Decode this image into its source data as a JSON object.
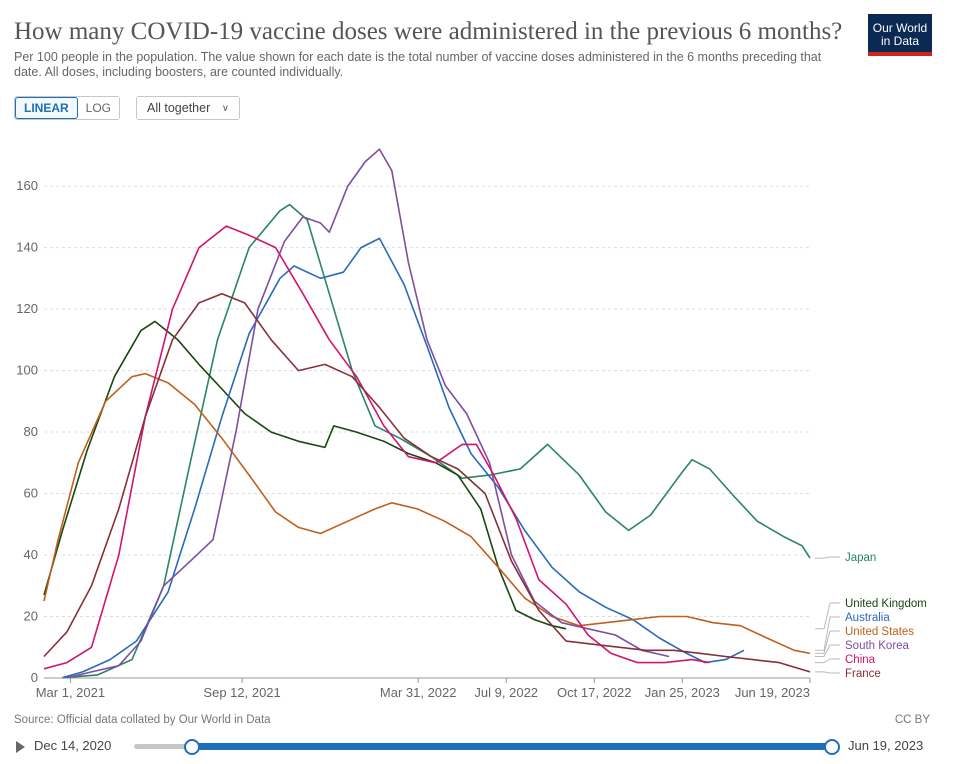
{
  "header": {
    "title": "How many COVID-19 vaccine doses were administered in the previous 6 months?",
    "subtitle": "Per 100 people in the population. The value shown for each date is the total number of vaccine doses administered in the 6 months preceding that date. All doses, including boosters, are counted individually.",
    "logo_line1": "Our World",
    "logo_line2": "in Data"
  },
  "controls": {
    "linear_label": "LINEAR",
    "log_label": "LOG",
    "dropdown_label": "All together",
    "active_scale": "linear"
  },
  "footer": {
    "source": "Source: Official data collated by Our World in Data",
    "license": "CC BY"
  },
  "timeline": {
    "start": "Dec 14, 2020",
    "end": "Jun 19, 2023",
    "start_fraction": 0.083,
    "end_fraction": 1.0
  },
  "chart_data": {
    "type": "line",
    "title": "How many COVID-19 vaccine doses were administered in the previous 6 months?",
    "x_start": "2021-01-30",
    "x_end": "2023-06-19",
    "x_ticks": [
      {
        "date": "2021-03-01",
        "label": "Mar 1, 2021"
      },
      {
        "date": "2021-09-12",
        "label": "Sep 12, 2021"
      },
      {
        "date": "2022-03-31",
        "label": "Mar 31, 2022"
      },
      {
        "date": "2022-07-09",
        "label": "Jul 9, 2022"
      },
      {
        "date": "2022-10-17",
        "label": "Oct 17, 2022"
      },
      {
        "date": "2023-01-25",
        "label": "Jan 25, 2023"
      },
      {
        "date": "2023-06-19",
        "label": "Jun 19, 2023"
      }
    ],
    "y_ticks": [
      0,
      20,
      40,
      60,
      80,
      100,
      120,
      140,
      160
    ],
    "ylim": [
      0,
      175
    ],
    "grid": "horizontal",
    "series": [
      {
        "name": "Japan",
        "color": "#2a8566",
        "points": [
          [
            "2021-02-20",
            0.1
          ],
          [
            "2021-04-01",
            1
          ],
          [
            "2021-05-10",
            6
          ],
          [
            "2021-06-15",
            30
          ],
          [
            "2021-07-15",
            70
          ],
          [
            "2021-08-15",
            110
          ],
          [
            "2021-09-20",
            140
          ],
          [
            "2021-10-25",
            152
          ],
          [
            "2021-11-05",
            154
          ],
          [
            "2021-11-25",
            149
          ],
          [
            "2021-12-20",
            125
          ],
          [
            "2022-01-15",
            100
          ],
          [
            "2022-02-10",
            82
          ],
          [
            "2022-03-10",
            78
          ],
          [
            "2022-04-15",
            72
          ],
          [
            "2022-05-20",
            65
          ],
          [
            "2022-06-20",
            66
          ],
          [
            "2022-07-25",
            68
          ],
          [
            "2022-08-25",
            76
          ],
          [
            "2022-09-30",
            66
          ],
          [
            "2022-10-30",
            54
          ],
          [
            "2022-11-25",
            48
          ],
          [
            "2022-12-20",
            53
          ],
          [
            "2023-01-25",
            67
          ],
          [
            "2023-02-05",
            71
          ],
          [
            "2023-02-25",
            68
          ],
          [
            "2023-03-25",
            59
          ],
          [
            "2023-04-20",
            51
          ],
          [
            "2023-05-20",
            46
          ],
          [
            "2023-06-10",
            43
          ],
          [
            "2023-06-19",
            39
          ]
        ]
      },
      {
        "name": "United Kingdom",
        "color": "#18470f",
        "points": [
          [
            "2021-01-30",
            27
          ],
          [
            "2021-02-20",
            48
          ],
          [
            "2021-03-20",
            74
          ],
          [
            "2021-04-20",
            98
          ],
          [
            "2021-05-20",
            113
          ],
          [
            "2021-06-05",
            116
          ],
          [
            "2021-07-01",
            110
          ],
          [
            "2021-07-25",
            102
          ],
          [
            "2021-08-20",
            94
          ],
          [
            "2021-09-15",
            86
          ],
          [
            "2021-10-15",
            80
          ],
          [
            "2021-11-15",
            77
          ],
          [
            "2021-12-15",
            75
          ],
          [
            "2021-12-25",
            82
          ],
          [
            "2022-01-20",
            80
          ],
          [
            "2022-02-20",
            77
          ],
          [
            "2022-03-20",
            73
          ],
          [
            "2022-04-20",
            70
          ],
          [
            "2022-05-15",
            66
          ],
          [
            "2022-06-10",
            55
          ],
          [
            "2022-06-30",
            36
          ],
          [
            "2022-07-20",
            22
          ],
          [
            "2022-08-10",
            19
          ],
          [
            "2022-08-30",
            17
          ],
          [
            "2022-09-15",
            16
          ]
        ]
      },
      {
        "name": "Australia",
        "color": "#286bbb",
        "points": [
          [
            "2021-02-20",
            0.1
          ],
          [
            "2021-03-15",
            2
          ],
          [
            "2021-04-15",
            6
          ],
          [
            "2021-05-15",
            12
          ],
          [
            "2021-06-20",
            28
          ],
          [
            "2021-07-20",
            55
          ],
          [
            "2021-08-20",
            85
          ],
          [
            "2021-09-20",
            112
          ],
          [
            "2021-10-25",
            130
          ],
          [
            "2021-11-10",
            134
          ],
          [
            "2021-12-10",
            130
          ],
          [
            "2022-01-05",
            132
          ],
          [
            "2022-01-25",
            140
          ],
          [
            "2022-02-15",
            143
          ],
          [
            "2022-03-15",
            128
          ],
          [
            "2022-04-10",
            108
          ],
          [
            "2022-05-05",
            88
          ],
          [
            "2022-05-30",
            73
          ],
          [
            "2022-06-30",
            62
          ],
          [
            "2022-07-30",
            48
          ],
          [
            "2022-08-30",
            36
          ],
          [
            "2022-09-30",
            28
          ],
          [
            "2022-10-30",
            23
          ],
          [
            "2022-11-30",
            19
          ],
          [
            "2022-12-30",
            13
          ],
          [
            "2023-01-30",
            8
          ],
          [
            "2023-02-20",
            5
          ],
          [
            "2023-03-15",
            6
          ],
          [
            "2023-04-05",
            9
          ]
        ]
      },
      {
        "name": "United States",
        "color": "#c15f1c",
        "points": [
          [
            "2021-01-30",
            25
          ],
          [
            "2021-02-15",
            45
          ],
          [
            "2021-03-10",
            70
          ],
          [
            "2021-04-10",
            90
          ],
          [
            "2021-05-10",
            98
          ],
          [
            "2021-05-25",
            99
          ],
          [
            "2021-06-20",
            96
          ],
          [
            "2021-07-20",
            89
          ],
          [
            "2021-08-20",
            78
          ],
          [
            "2021-09-20",
            66
          ],
          [
            "2021-10-20",
            54
          ],
          [
            "2021-11-15",
            49
          ],
          [
            "2021-12-10",
            47
          ],
          [
            "2022-01-10",
            51
          ],
          [
            "2022-02-10",
            55
          ],
          [
            "2022-03-01",
            57
          ],
          [
            "2022-03-30",
            55
          ],
          [
            "2022-04-30",
            51
          ],
          [
            "2022-05-30",
            46
          ],
          [
            "2022-06-30",
            36
          ],
          [
            "2022-07-30",
            26
          ],
          [
            "2022-08-30",
            20
          ],
          [
            "2022-09-30",
            17
          ],
          [
            "2022-10-30",
            18
          ],
          [
            "2022-11-30",
            19
          ],
          [
            "2022-12-30",
            20
          ],
          [
            "2023-01-30",
            20
          ],
          [
            "2023-03-01",
            18
          ],
          [
            "2023-04-01",
            17
          ],
          [
            "2023-05-01",
            13
          ],
          [
            "2023-06-01",
            9
          ],
          [
            "2023-06-19",
            8
          ]
        ]
      },
      {
        "name": "South Korea",
        "color": "#7e4ea0",
        "points": [
          [
            "2021-02-26",
            0.1
          ],
          [
            "2021-03-25",
            2
          ],
          [
            "2021-04-25",
            4
          ],
          [
            "2021-05-20",
            12
          ],
          [
            "2021-06-15",
            30
          ],
          [
            "2021-07-15",
            38
          ],
          [
            "2021-08-10",
            45
          ],
          [
            "2021-09-05",
            80
          ],
          [
            "2021-09-30",
            120
          ],
          [
            "2021-10-30",
            142
          ],
          [
            "2021-11-20",
            150
          ],
          [
            "2021-12-10",
            148
          ],
          [
            "2021-12-20",
            145
          ],
          [
            "2022-01-10",
            160
          ],
          [
            "2022-01-30",
            168
          ],
          [
            "2022-02-15",
            172
          ],
          [
            "2022-03-01",
            165
          ],
          [
            "2022-03-20",
            135
          ],
          [
            "2022-04-10",
            110
          ],
          [
            "2022-05-01",
            95
          ],
          [
            "2022-05-25",
            86
          ],
          [
            "2022-06-20",
            70
          ],
          [
            "2022-07-15",
            40
          ],
          [
            "2022-08-10",
            25
          ],
          [
            "2022-09-10",
            18
          ],
          [
            "2022-10-10",
            16
          ],
          [
            "2022-11-10",
            14
          ],
          [
            "2022-12-10",
            9
          ],
          [
            "2023-01-10",
            7
          ]
        ]
      },
      {
        "name": "China",
        "color": "#d0146f",
        "points": [
          [
            "2021-01-30",
            3
          ],
          [
            "2021-02-25",
            5
          ],
          [
            "2021-03-25",
            10
          ],
          [
            "2021-04-25",
            40
          ],
          [
            "2021-05-25",
            85
          ],
          [
            "2021-06-25",
            120
          ],
          [
            "2021-07-25",
            140
          ],
          [
            "2021-08-25",
            147
          ],
          [
            "2021-09-20",
            144
          ],
          [
            "2021-10-20",
            140
          ],
          [
            "2021-11-20",
            125
          ],
          [
            "2021-12-20",
            110
          ],
          [
            "2022-01-20",
            98
          ],
          [
            "2022-02-20",
            82
          ],
          [
            "2022-03-20",
            72
          ],
          [
            "2022-04-20",
            70
          ],
          [
            "2022-05-20",
            76
          ],
          [
            "2022-06-05",
            76
          ],
          [
            "2022-06-25",
            66
          ],
          [
            "2022-07-20",
            52
          ],
          [
            "2022-08-15",
            32
          ],
          [
            "2022-09-15",
            24
          ],
          [
            "2022-10-10",
            14
          ],
          [
            "2022-11-05",
            8
          ],
          [
            "2022-12-05",
            5
          ],
          [
            "2023-01-05",
            5
          ],
          [
            "2023-02-05",
            6
          ],
          [
            "2023-02-25",
            5
          ]
        ]
      },
      {
        "name": "France",
        "color": "#883039",
        "points": [
          [
            "2021-01-30",
            7
          ],
          [
            "2021-02-25",
            15
          ],
          [
            "2021-03-25",
            30
          ],
          [
            "2021-04-25",
            55
          ],
          [
            "2021-05-25",
            85
          ],
          [
            "2021-06-25",
            110
          ],
          [
            "2021-07-25",
            122
          ],
          [
            "2021-08-20",
            125
          ],
          [
            "2021-09-15",
            122
          ],
          [
            "2021-10-15",
            110
          ],
          [
            "2021-11-15",
            100
          ],
          [
            "2021-12-15",
            102
          ],
          [
            "2022-01-15",
            98
          ],
          [
            "2022-02-15",
            88
          ],
          [
            "2022-03-15",
            78
          ],
          [
            "2022-04-15",
            72
          ],
          [
            "2022-05-15",
            68
          ],
          [
            "2022-06-15",
            60
          ],
          [
            "2022-07-15",
            38
          ],
          [
            "2022-08-15",
            22
          ],
          [
            "2022-09-15",
            12
          ],
          [
            "2022-10-15",
            11
          ],
          [
            "2022-11-15",
            10
          ],
          [
            "2022-12-15",
            9
          ],
          [
            "2023-01-15",
            9
          ],
          [
            "2023-02-15",
            8
          ],
          [
            "2023-03-15",
            7
          ],
          [
            "2023-04-15",
            6
          ],
          [
            "2023-05-15",
            5
          ],
          [
            "2023-06-19",
            2
          ]
        ]
      }
    ],
    "legend": [
      {
        "name": "Japan",
        "color": "#2a8566"
      },
      {
        "name": "United Kingdom",
        "color": "#18470f"
      },
      {
        "name": "Australia",
        "color": "#286bbb"
      },
      {
        "name": "United States",
        "color": "#c15f1c"
      },
      {
        "name": "South Korea",
        "color": "#7e4ea0"
      },
      {
        "name": "China",
        "color": "#d0146f"
      },
      {
        "name": "France",
        "color": "#883039"
      }
    ]
  }
}
